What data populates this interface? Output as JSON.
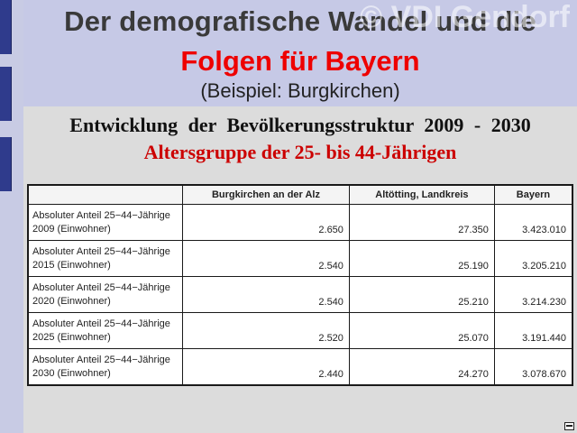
{
  "header": {
    "title_line1": "Der demografische Wandel und die",
    "title_line2": "Folgen für Bayern",
    "title_line3": "(Beispiel: Burgkirchen)",
    "watermark": "© VDI Gendorf"
  },
  "subtitle": {
    "line1": "Entwicklung der Bevölkerungsstruktur 2009 - 2030",
    "line2": "Altersgruppe der 25- bis 44-Jährigen"
  },
  "table": {
    "columns": [
      "",
      "Burgkirchen an der Alz",
      "Altötting, Landkreis",
      "Bayern"
    ],
    "rows": [
      {
        "label_line1": "Absoluter Anteil 25−44−Jährige",
        "label_line2": "2009 (Einwohner)",
        "burgkirchen": "2.650",
        "altoetting": "27.350",
        "bayern": "3.423.010"
      },
      {
        "label_line1": "Absoluter Anteil 25−44−Jährige",
        "label_line2": "2015 (Einwohner)",
        "burgkirchen": "2.540",
        "altoetting": "25.190",
        "bayern": "3.205.210"
      },
      {
        "label_line1": "Absoluter Anteil 25−44−Jährige",
        "label_line2": "2020 (Einwohner)",
        "burgkirchen": "2.540",
        "altoetting": "25.210",
        "bayern": "3.214.230"
      },
      {
        "label_line1": "Absoluter Anteil 25−44−Jährige",
        "label_line2": "2025 (Einwohner)",
        "burgkirchen": "2.520",
        "altoetting": "25.070",
        "bayern": "3.191.440"
      },
      {
        "label_line1": "Absoluter Anteil 25−44−Jährige",
        "label_line2": "2030 (Einwohner)",
        "burgkirchen": "2.440",
        "altoetting": "24.270",
        "bayern": "3.078.670"
      }
    ]
  },
  "icons": {
    "corner": "minimize-icon"
  }
}
